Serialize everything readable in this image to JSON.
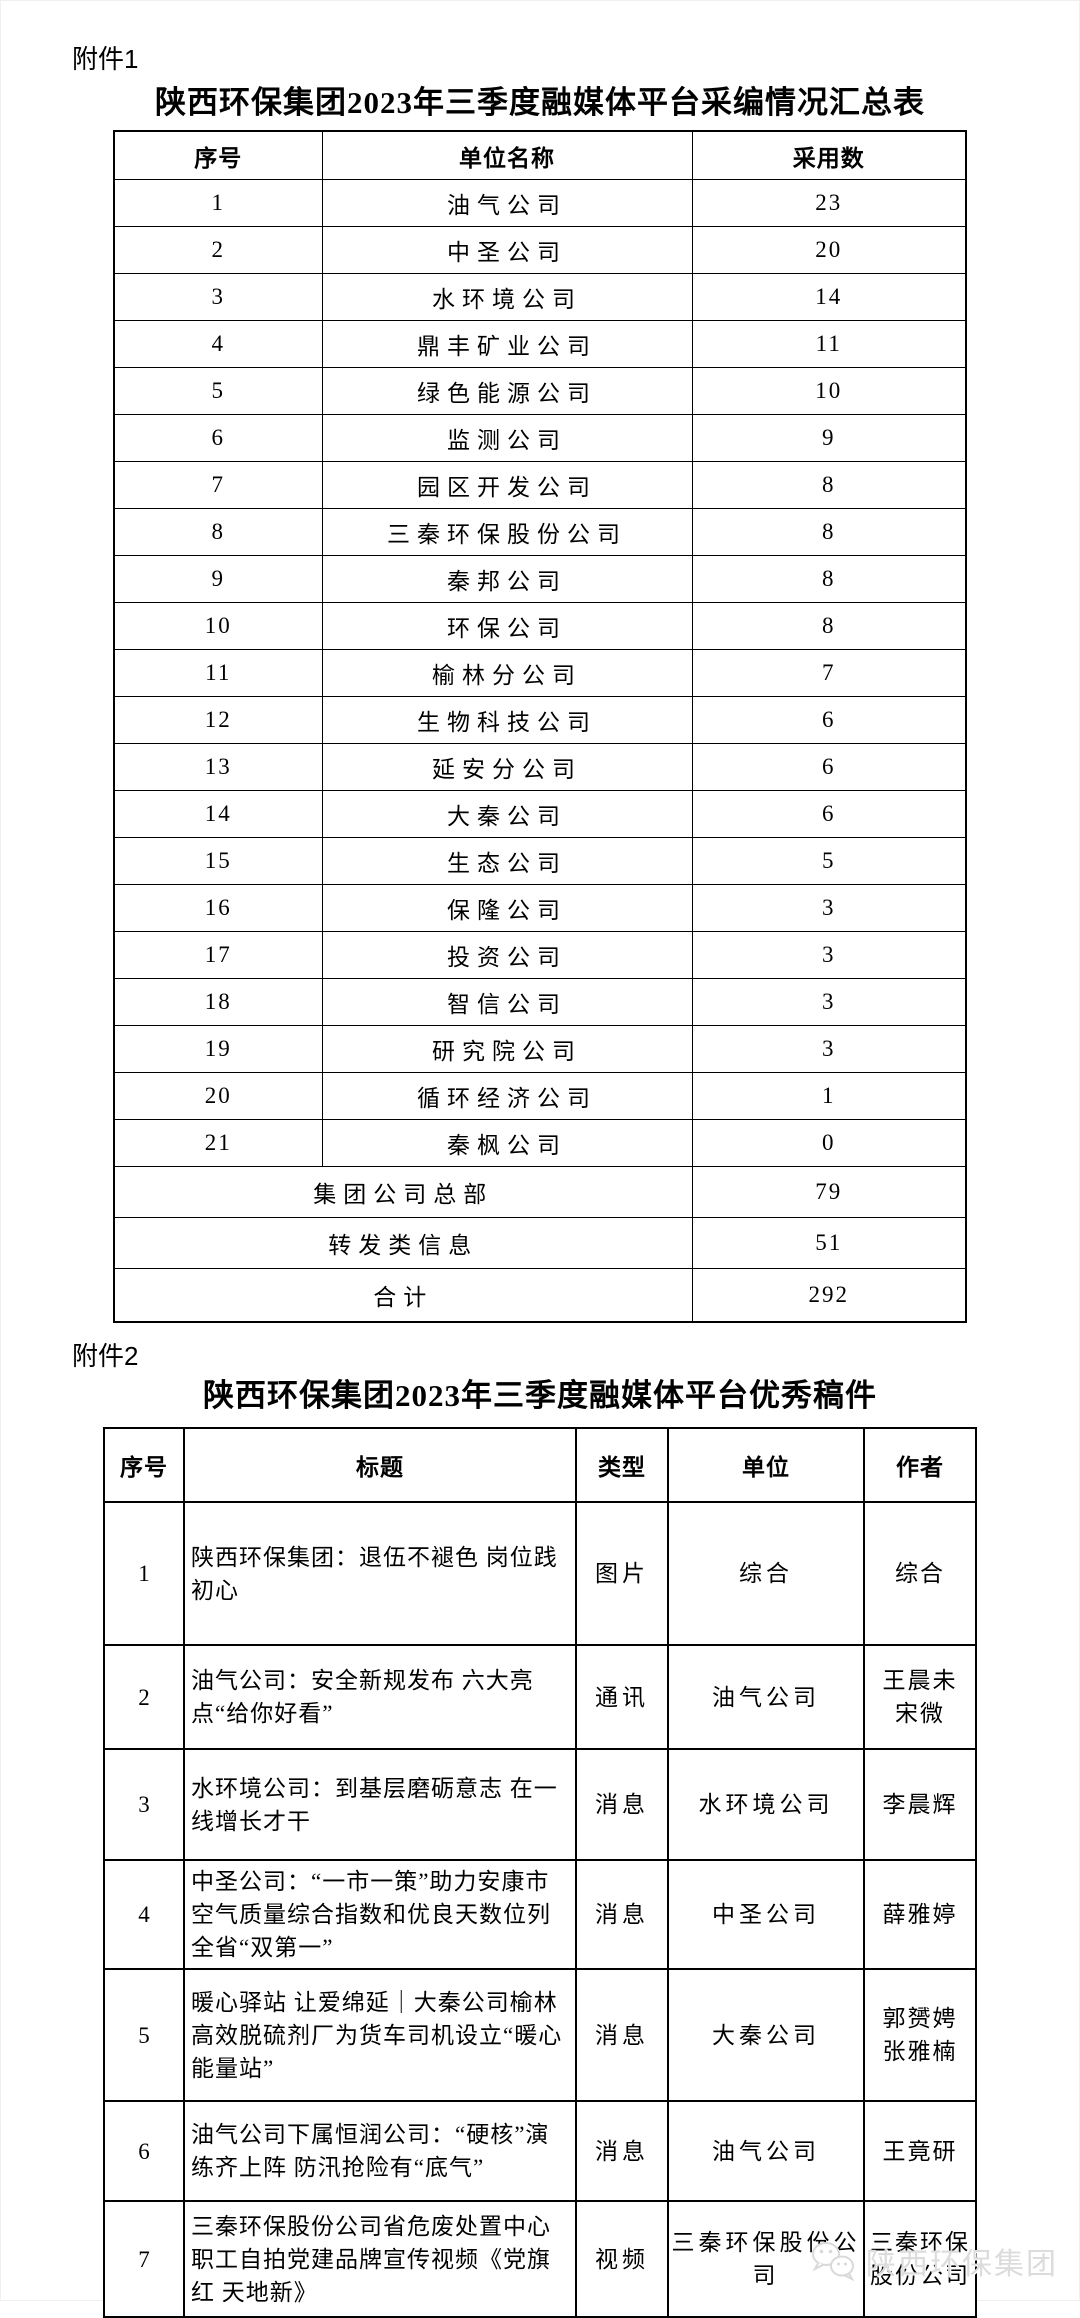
{
  "attachment1": {
    "label": "附件1"
  },
  "attachment2": {
    "label": "附件2"
  },
  "table1": {
    "title": "陕西环保集团2023年三季度融媒体平台采编情况汇总表",
    "columns": [
      "序号",
      "单位名称",
      "采用数"
    ],
    "rows": [
      [
        "1",
        "油气公司",
        "23"
      ],
      [
        "2",
        "中圣公司",
        "20"
      ],
      [
        "3",
        "水环境公司",
        "14"
      ],
      [
        "4",
        "鼎丰矿业公司",
        "11"
      ],
      [
        "5",
        "绿色能源公司",
        "10"
      ],
      [
        "6",
        "监测公司",
        "9"
      ],
      [
        "7",
        "园区开发公司",
        "8"
      ],
      [
        "8",
        "三秦环保股份公司",
        "8"
      ],
      [
        "9",
        "秦邦公司",
        "8"
      ],
      [
        "10",
        "环保公司",
        "8"
      ],
      [
        "11",
        "榆林分公司",
        "7"
      ],
      [
        "12",
        "生物科技公司",
        "6"
      ],
      [
        "13",
        "延安分公司",
        "6"
      ],
      [
        "14",
        "大秦公司",
        "6"
      ],
      [
        "15",
        "生态公司",
        "5"
      ],
      [
        "16",
        "保隆公司",
        "3"
      ],
      [
        "17",
        "投资公司",
        "3"
      ],
      [
        "18",
        "智信公司",
        "3"
      ],
      [
        "19",
        "研究院公司",
        "3"
      ],
      [
        "20",
        "循环经济公司",
        "1"
      ],
      [
        "21",
        "秦枫公司",
        "0"
      ]
    ],
    "summary_rows": [
      [
        "集团公司总部",
        "79"
      ],
      [
        "转发类信息",
        "51"
      ],
      [
        "合计",
        "292"
      ]
    ]
  },
  "table2": {
    "title": "陕西环保集团2023年三季度融媒体平台优秀稿件",
    "columns": [
      "序号",
      "标题",
      "类型",
      "单位",
      "作者"
    ],
    "rows": [
      {
        "no": "1",
        "title": "陕西环保集团：退伍不褪色 岗位践初心",
        "type": "图片",
        "unit": "综合",
        "author": "综合"
      },
      {
        "no": "2",
        "title": "油气公司：安全新规发布 六大亮点“给你好看”",
        "type": "通讯",
        "unit": "油气公司",
        "author": "王晨未\n宋微"
      },
      {
        "no": "3",
        "title": "水环境公司：到基层磨砺意志 在一线增长才干",
        "type": "消息",
        "unit": "水环境公司",
        "author": "李晨辉"
      },
      {
        "no": "4",
        "title": "中圣公司：“一市一策”助力安康市空气质量综合指数和优良天数位列全省“双第一”",
        "type": "消息",
        "unit": "中圣公司",
        "author": "薛雅婷"
      },
      {
        "no": "5",
        "title": "暖心驿站 让爱绵延｜大秦公司榆林高效脱硫剂厂为货车司机设立“暖心能量站”",
        "type": "消息",
        "unit": "大秦公司",
        "author": "郭赟娉\n张雅楠"
      },
      {
        "no": "6",
        "title": "油气公司下属恒润公司：“硬核”演练齐上阵 防汛抢险有“底气”",
        "type": "消息",
        "unit": "油气公司",
        "author": "王竟研"
      },
      {
        "no": "7",
        "title": "三秦环保股份公司省危废处置中心职工自拍党建品牌宣传视频《党旗红 天地新》",
        "type": "视频",
        "unit": "三秦环保股份公司",
        "author": "三秦环保股份公司"
      }
    ]
  },
  "watermark": {
    "icon": "wechat-icon",
    "text": "陕西环保集团"
  }
}
